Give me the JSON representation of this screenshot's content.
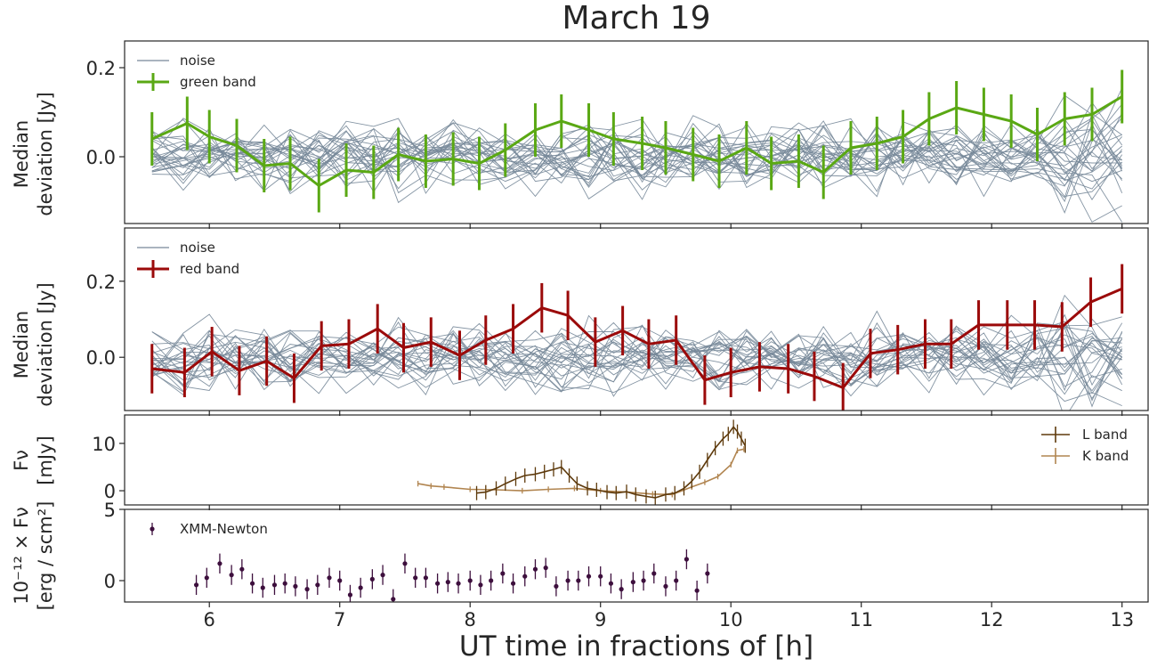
{
  "figure": {
    "title": "March 19",
    "xlabel": "UT time in fractions of [h]",
    "x_ticks": [
      "6",
      "7",
      "8",
      "9",
      "10",
      "11",
      "12",
      "13"
    ]
  },
  "colors": {
    "noise": "#778899",
    "green": "#5aa814",
    "red": "#9b0a0a",
    "lband": "#5e3a0c",
    "kband": "#b18550",
    "xmm": "#3d0f3d"
  },
  "chart_data": [
    {
      "type": "line",
      "panel": "green",
      "ylabel": [
        "Median",
        "deviation [Jy]"
      ],
      "ylim": [
        -0.15,
        0.26
      ],
      "yticks": [
        "0.0",
        "0.2"
      ],
      "xlim": [
        5.35,
        13.2
      ],
      "grid": false,
      "legend_position": "top-left",
      "legend": [
        "noise",
        "green band"
      ],
      "noise_lines": 28,
      "series": [
        {
          "name": "green band",
          "x": [
            5.56,
            5.83,
            6.0,
            6.21,
            6.42,
            6.62,
            6.84,
            7.05,
            7.26,
            7.45,
            7.66,
            7.87,
            8.07,
            8.27,
            8.5,
            8.7,
            8.91,
            9.1,
            9.32,
            9.5,
            9.71,
            9.91,
            10.12,
            10.31,
            10.52,
            10.71,
            10.92,
            11.12,
            11.32,
            11.52,
            11.73,
            11.94,
            12.15,
            12.35,
            12.56,
            12.77,
            13.0
          ],
          "y": [
            0.04,
            0.075,
            0.045,
            0.025,
            -0.02,
            -0.015,
            -0.065,
            -0.03,
            -0.035,
            0.005,
            -0.01,
            -0.005,
            -0.015,
            0.015,
            0.06,
            0.08,
            0.06,
            0.04,
            0.03,
            0.02,
            0.005,
            -0.01,
            0.02,
            -0.015,
            -0.01,
            -0.035,
            0.02,
            0.03,
            0.045,
            0.085,
            0.11,
            0.095,
            0.08,
            0.05,
            0.085,
            0.095,
            0.135
          ],
          "err": 0.06
        }
      ]
    },
    {
      "type": "line",
      "panel": "red",
      "ylabel": [
        "Median",
        "deviation [Jy]"
      ],
      "ylim": [
        -0.14,
        0.34
      ],
      "yticks": [
        "0.0",
        "0.2"
      ],
      "xlim": [
        5.35,
        13.2
      ],
      "grid": false,
      "legend_position": "top-left",
      "legend": [
        "noise",
        "red band"
      ],
      "noise_lines": 26,
      "series": [
        {
          "name": "red band",
          "x": [
            5.56,
            5.81,
            6.02,
            6.23,
            6.44,
            6.65,
            6.86,
            7.07,
            7.29,
            7.49,
            7.7,
            7.92,
            8.12,
            8.33,
            8.55,
            8.75,
            8.96,
            9.17,
            9.37,
            9.58,
            9.8,
            10.0,
            10.22,
            10.44,
            10.64,
            10.86,
            11.07,
            11.28,
            11.49,
            11.69,
            11.9,
            12.12,
            12.33,
            12.54,
            12.76,
            13.0
          ],
          "y": [
            -0.03,
            -0.04,
            0.015,
            -0.035,
            -0.01,
            -0.055,
            0.03,
            0.035,
            0.075,
            0.025,
            0.04,
            0.005,
            0.045,
            0.075,
            0.13,
            0.11,
            0.04,
            0.07,
            0.035,
            0.045,
            -0.06,
            -0.04,
            -0.025,
            -0.03,
            -0.05,
            -0.08,
            0.01,
            0.02,
            0.035,
            0.035,
            0.085,
            0.085,
            0.085,
            0.08,
            0.145,
            0.18
          ],
          "err": 0.065
        }
      ]
    },
    {
      "type": "line",
      "panel": "lk",
      "ylabel": [
        "Fν",
        "[mJy]"
      ],
      "ylim": [
        -3,
        16
      ],
      "yticks": [
        "0",
        "10"
      ],
      "xlim": [
        5.35,
        13.2
      ],
      "grid": false,
      "legend_position": "top-right",
      "legend": [
        "L band",
        "K band"
      ],
      "series": [
        {
          "name": "K band",
          "x": [
            7.6,
            7.7,
            7.8,
            8.0,
            8.2,
            8.4,
            8.6,
            8.8,
            9.0,
            9.2,
            9.4,
            9.55,
            9.7,
            9.8,
            9.9,
            10.0,
            10.05,
            10.1
          ],
          "y": [
            1.5,
            1.0,
            0.8,
            0.3,
            0.2,
            0.0,
            0.3,
            0.5,
            0.0,
            -0.3,
            -0.7,
            -0.8,
            0.8,
            1.8,
            3.0,
            5.5,
            8.5,
            8.8
          ],
          "err": 0.6
        },
        {
          "name": "L band",
          "x": [
            8.05,
            8.12,
            8.2,
            8.27,
            8.35,
            8.42,
            8.5,
            8.57,
            8.64,
            8.7,
            8.76,
            8.82,
            8.9,
            8.97,
            9.05,
            9.12,
            9.2,
            9.27,
            9.35,
            9.42,
            9.5,
            9.57,
            9.64,
            9.7,
            9.76,
            9.82,
            9.88,
            9.94,
            9.98,
            10.02,
            10.05,
            10.08,
            10.11
          ],
          "y": [
            -0.5,
            -0.3,
            0.5,
            1.5,
            2.5,
            3.2,
            3.5,
            4.0,
            4.5,
            5.0,
            3.2,
            1.5,
            0.5,
            0.2,
            -0.3,
            -0.5,
            -0.2,
            -0.8,
            -1.2,
            -1.5,
            -0.8,
            -0.5,
            0.5,
            2.0,
            4.0,
            6.5,
            9.0,
            11.0,
            12.0,
            13.5,
            12.5,
            11.0,
            9.5
          ],
          "err": 1.5
        }
      ]
    },
    {
      "type": "scatter",
      "panel": "xmm",
      "ylabel": [
        "10⁻¹² × Fν",
        "[erg / scm²]"
      ],
      "ylim": [
        -1.5,
        5
      ],
      "yticks": [
        "0",
        "5"
      ],
      "xlim": [
        5.35,
        13.2
      ],
      "grid": false,
      "legend_position": "top-left",
      "legend": [
        "XMM-Newton"
      ],
      "series": [
        {
          "name": "XMM-Newton",
          "x": [
            5.9,
            5.98,
            6.08,
            6.17,
            6.25,
            6.33,
            6.41,
            6.5,
            6.58,
            6.66,
            6.75,
            6.83,
            6.92,
            7.0,
            7.08,
            7.16,
            7.25,
            7.33,
            7.41,
            7.5,
            7.58,
            7.66,
            7.75,
            7.83,
            7.91,
            8.0,
            8.08,
            8.16,
            8.25,
            8.33,
            8.42,
            8.5,
            8.58,
            8.66,
            8.75,
            8.83,
            8.91,
            9.0,
            9.08,
            9.16,
            9.25,
            9.33,
            9.41,
            9.5,
            9.58,
            9.66,
            9.74,
            9.82
          ],
          "y": [
            -0.3,
            0.2,
            1.2,
            0.4,
            0.8,
            -0.2,
            -0.5,
            -0.3,
            -0.2,
            -0.4,
            -0.6,
            -0.3,
            0.2,
            0.0,
            -1.0,
            -0.5,
            0.1,
            0.4,
            -1.3,
            1.2,
            0.2,
            0.2,
            -0.2,
            -0.1,
            -0.2,
            0.0,
            -0.3,
            0.0,
            0.5,
            -0.2,
            0.3,
            0.8,
            0.9,
            -0.4,
            0.0,
            0.0,
            0.3,
            0.3,
            -0.2,
            -0.6,
            -0.1,
            0.0,
            0.5,
            -0.4,
            0.0,
            1.5,
            -0.7,
            0.5
          ],
          "err": 0.7
        }
      ]
    }
  ]
}
